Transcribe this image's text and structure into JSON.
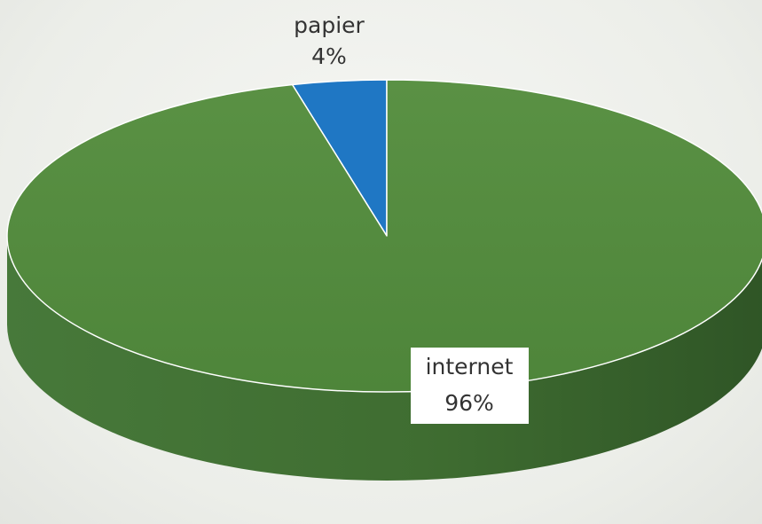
{
  "chart_data": {
    "type": "pie",
    "three_d": true,
    "categories": [
      "papier",
      "internet"
    ],
    "values": [
      4,
      96
    ],
    "unit": "%",
    "data_labels": [
      {
        "category": "papier",
        "value_text": "4%"
      },
      {
        "category": "internet",
        "value_text": "96%"
      }
    ],
    "colors": {
      "papier": "#1f77c4",
      "internet": "#4e8a3a",
      "internet_side": "#3c6b2e",
      "slice_border": "#ffffff"
    },
    "legend": "none",
    "title": ""
  }
}
